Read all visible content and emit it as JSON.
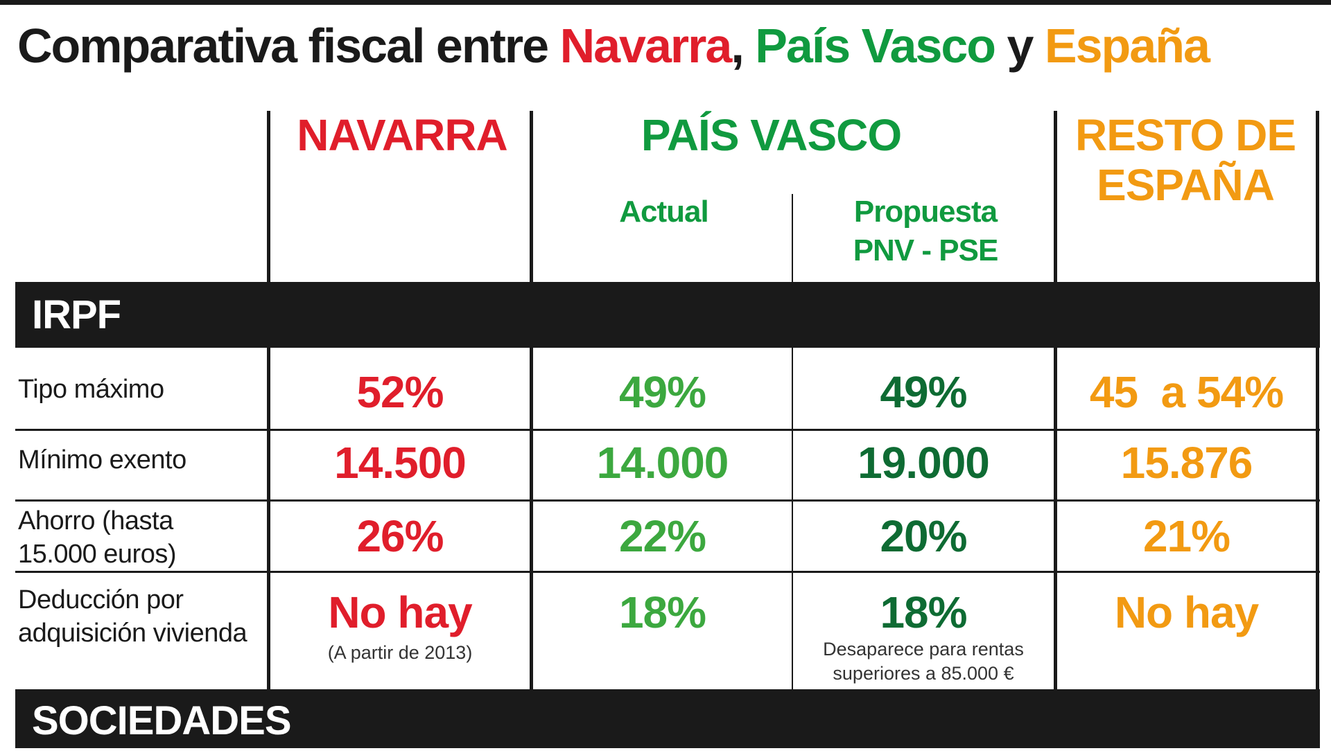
{
  "title": {
    "part1": "Comparativa fiscal entre ",
    "navarra": "Navarra",
    "comma": ", ",
    "pais_vasco": "País Vasco",
    "y": " y ",
    "espana": "España"
  },
  "columns": {
    "navarra": "NAVARRA",
    "pais_vasco": "PAÍS VASCO",
    "actual": "Actual",
    "propuesta_line1": "Propuesta",
    "propuesta_line2": "PNV - PSE",
    "resto_line1": "RESTO DE",
    "resto_line2": "ESPAÑA"
  },
  "sections": {
    "irpf": "IRPF",
    "sociedades": "SOCIEDADES"
  },
  "rows": [
    {
      "label": "Tipo máximo",
      "navarra": "52%",
      "actual": "49%",
      "propuesta": "49%",
      "resto": "45  a 54%"
    },
    {
      "label": "Mínimo exento",
      "navarra": "14.500",
      "actual": "14.000",
      "propuesta": "19.000",
      "resto": "15.876"
    },
    {
      "label_line1": "Ahorro (hasta",
      "label_line2": "15.000 euros)",
      "navarra": "26%",
      "actual": "22%",
      "propuesta": "20%",
      "resto": "21%"
    },
    {
      "label_line1": "Deducción por",
      "label_line2": "adquisición vivienda",
      "navarra": "No hay",
      "navarra_note": "(A partir de 2013)",
      "actual": "18%",
      "propuesta": "18%",
      "propuesta_note_line1": "Desaparece para rentas",
      "propuesta_note_line2": "superiores a 85.000 €",
      "resto": "No hay"
    }
  ],
  "colors": {
    "navarra": "#e01e2b",
    "pais_vasco": "#109a3f",
    "pais_vasco_actual": "#3ca83f",
    "pais_vasco_propuesta": "#0e6b33",
    "espana": "#f29a12",
    "band": "#1a1a1a"
  }
}
